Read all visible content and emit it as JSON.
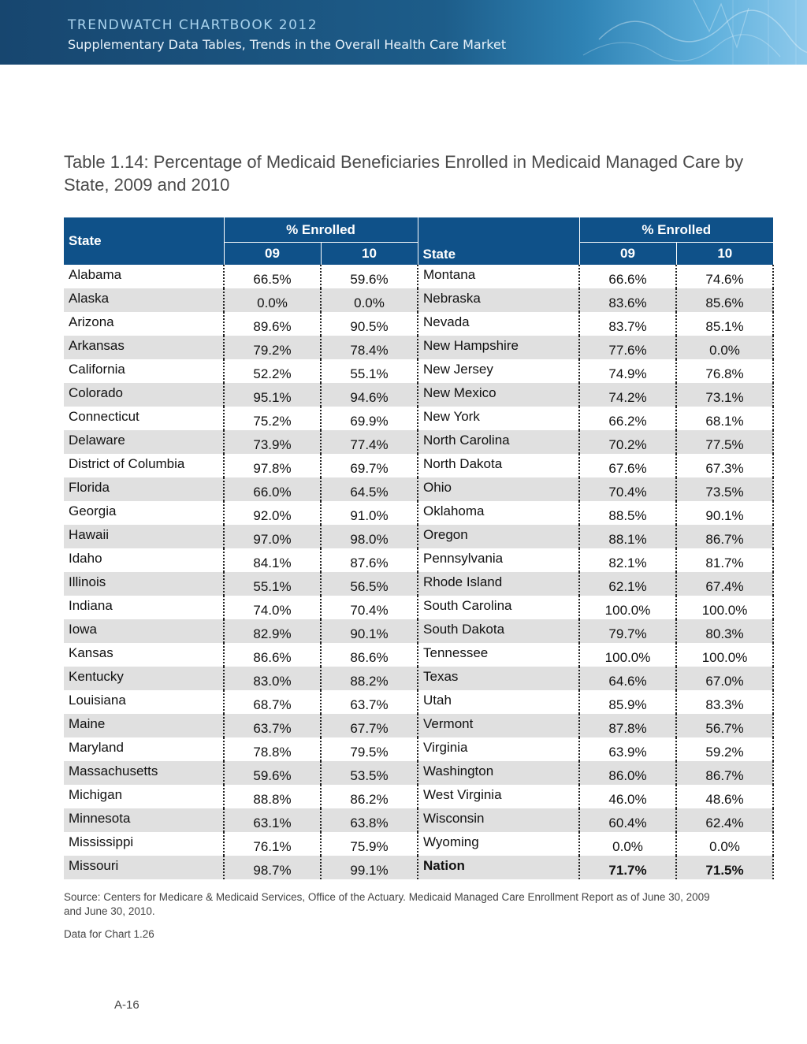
{
  "header": {
    "line1": "TRENDWATCH CHARTBOOK 2012",
    "line2": "Supplementary Data Tables, Trends in the Overall Health Care Market"
  },
  "title": "Table 1.14: Percentage of Medicaid Beneficiaries Enrolled in Medicaid Managed Care by State, 2009 and 2010",
  "table": {
    "col_state": "State",
    "col_group": "% Enrolled",
    "col_09": "09",
    "col_10": "10",
    "rows": [
      [
        [
          "Alabama",
          "66.5%",
          "59.6%"
        ],
        [
          "Montana",
          "66.6%",
          "74.6%"
        ]
      ],
      [
        [
          "Alaska",
          "0.0%",
          "0.0%"
        ],
        [
          "Nebraska",
          "83.6%",
          "85.6%"
        ]
      ],
      [
        [
          "Arizona",
          "89.6%",
          "90.5%"
        ],
        [
          "Nevada",
          "83.7%",
          "85.1%"
        ]
      ],
      [
        [
          "Arkansas",
          "79.2%",
          "78.4%"
        ],
        [
          "New Hampshire",
          "77.6%",
          "0.0%"
        ]
      ],
      [
        [
          "California",
          "52.2%",
          "55.1%"
        ],
        [
          "New Jersey",
          "74.9%",
          "76.8%"
        ]
      ],
      [
        [
          "Colorado",
          "95.1%",
          "94.6%"
        ],
        [
          "New Mexico",
          "74.2%",
          "73.1%"
        ]
      ],
      [
        [
          "Connecticut",
          "75.2%",
          "69.9%"
        ],
        [
          "New York",
          "66.2%",
          "68.1%"
        ]
      ],
      [
        [
          "Delaware",
          "73.9%",
          "77.4%"
        ],
        [
          "North Carolina",
          "70.2%",
          "77.5%"
        ]
      ],
      [
        [
          "District of Columbia",
          "97.8%",
          "69.7%"
        ],
        [
          "North Dakota",
          "67.6%",
          "67.3%"
        ]
      ],
      [
        [
          "Florida",
          "66.0%",
          "64.5%"
        ],
        [
          "Ohio",
          "70.4%",
          "73.5%"
        ]
      ],
      [
        [
          "Georgia",
          "92.0%",
          "91.0%"
        ],
        [
          "Oklahoma",
          "88.5%",
          "90.1%"
        ]
      ],
      [
        [
          "Hawaii",
          "97.0%",
          "98.0%"
        ],
        [
          "Oregon",
          "88.1%",
          "86.7%"
        ]
      ],
      [
        [
          "Idaho",
          "84.1%",
          "87.6%"
        ],
        [
          "Pennsylvania",
          "82.1%",
          "81.7%"
        ]
      ],
      [
        [
          "Illinois",
          "55.1%",
          "56.5%"
        ],
        [
          "Rhode Island",
          "62.1%",
          "67.4%"
        ]
      ],
      [
        [
          "Indiana",
          "74.0%",
          "70.4%"
        ],
        [
          "South Carolina",
          "100.0%",
          "100.0%"
        ]
      ],
      [
        [
          "Iowa",
          "82.9%",
          "90.1%"
        ],
        [
          "South Dakota",
          "79.7%",
          "80.3%"
        ]
      ],
      [
        [
          "Kansas",
          "86.6%",
          "86.6%"
        ],
        [
          "Tennessee",
          "100.0%",
          "100.0%"
        ]
      ],
      [
        [
          "Kentucky",
          "83.0%",
          "88.2%"
        ],
        [
          "Texas",
          "64.6%",
          "67.0%"
        ]
      ],
      [
        [
          "Louisiana",
          "68.7%",
          "63.7%"
        ],
        [
          "Utah",
          "85.9%",
          "83.3%"
        ]
      ],
      [
        [
          "Maine",
          "63.7%",
          "67.7%"
        ],
        [
          "Vermont",
          "87.8%",
          "56.7%"
        ]
      ],
      [
        [
          "Maryland",
          "78.8%",
          "79.5%"
        ],
        [
          "Virginia",
          "63.9%",
          "59.2%"
        ]
      ],
      [
        [
          "Massachusetts",
          "59.6%",
          "53.5%"
        ],
        [
          "Washington",
          "86.0%",
          "86.7%"
        ]
      ],
      [
        [
          "Michigan",
          "88.8%",
          "86.2%"
        ],
        [
          "West Virginia",
          "46.0%",
          "48.6%"
        ]
      ],
      [
        [
          "Minnesota",
          "63.1%",
          "63.8%"
        ],
        [
          "Wisconsin",
          "60.4%",
          "62.4%"
        ]
      ],
      [
        [
          "Mississippi",
          "76.1%",
          "75.9%"
        ],
        [
          "Wyoming",
          "0.0%",
          "0.0%"
        ]
      ],
      [
        [
          "Missouri",
          "98.7%",
          "99.1%"
        ],
        [
          "Nation",
          "71.7%",
          "71.5%"
        ]
      ]
    ]
  },
  "source": "Source:  Centers for Medicare & Medicaid Services, Office of the Actuary.  Medicaid Managed Care Enrollment Report as of June 30, 2009 and June 30, 2010.",
  "note": "Data for Chart 1.26",
  "page_number": "A-16",
  "colors": {
    "header_blue": "#0f5189",
    "banner_blue": "#17466f",
    "stripe_gray": "#e0e0e0"
  }
}
